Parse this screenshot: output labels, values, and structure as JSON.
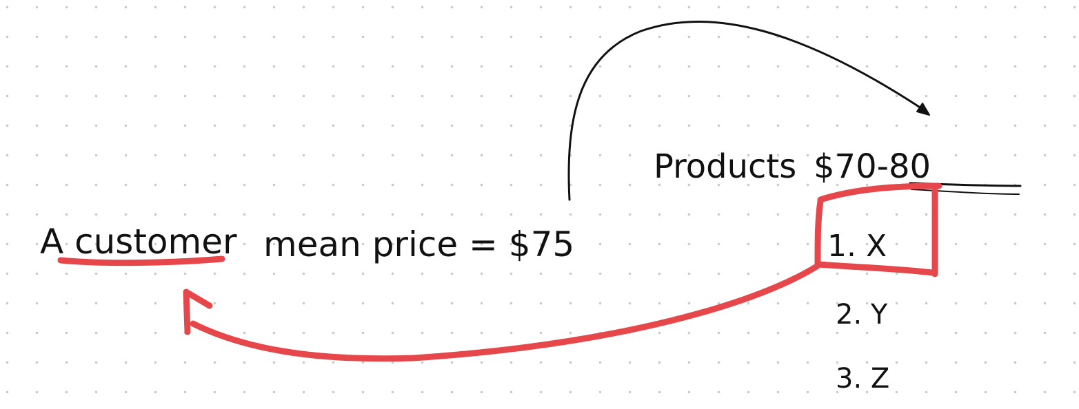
{
  "note": {
    "customer_label": "A customer",
    "mean_price_text": "mean price = $75",
    "products_label": "Products",
    "price_range": "$70-80",
    "product_items": [
      "1. X",
      "2. Y",
      "3. Z"
    ]
  },
  "colors": {
    "background": "#ffffff",
    "grid_dots": "#c9c9c9",
    "ink": "#111111",
    "highlight": "#e5474b"
  }
}
